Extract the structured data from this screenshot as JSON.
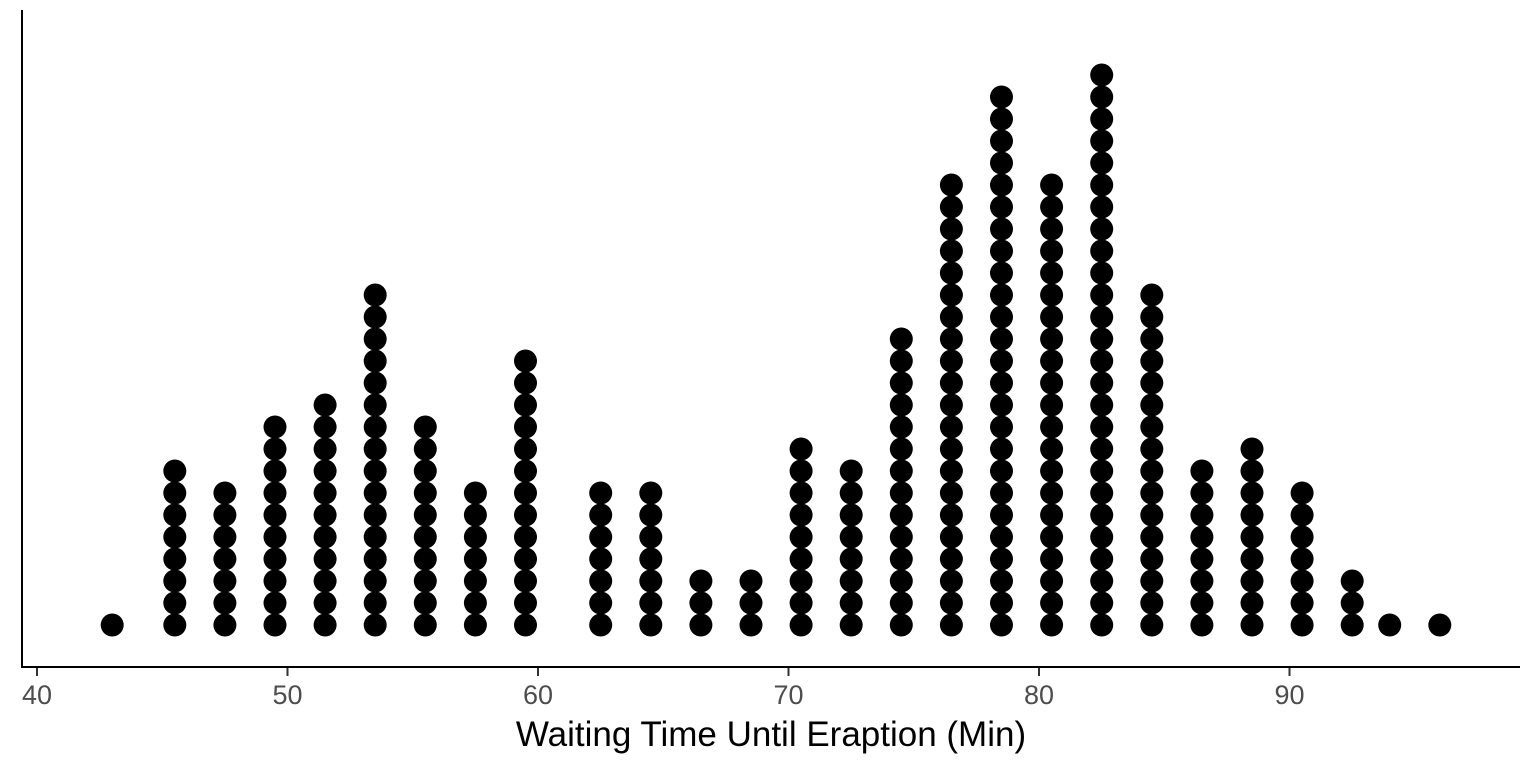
{
  "chart_data": {
    "type": "dotplot",
    "xlabel": "Waiting Time Until Eraption (Min)",
    "ylabel": "",
    "xlim": [
      39.4,
      99.2
    ],
    "x_ticks": [
      40,
      50,
      60,
      70,
      80,
      90
    ],
    "grid": false,
    "dot_color": "#000000",
    "points": [
      {
        "x": 43,
        "count": 1
      },
      {
        "x": 45.5,
        "count": 8
      },
      {
        "x": 47.5,
        "count": 7
      },
      {
        "x": 49.5,
        "count": 10
      },
      {
        "x": 51.5,
        "count": 11
      },
      {
        "x": 53.5,
        "count": 16
      },
      {
        "x": 55.5,
        "count": 10
      },
      {
        "x": 57.5,
        "count": 7
      },
      {
        "x": 59.5,
        "count": 13
      },
      {
        "x": 62.5,
        "count": 7
      },
      {
        "x": 64.5,
        "count": 7
      },
      {
        "x": 66.5,
        "count": 3
      },
      {
        "x": 68.5,
        "count": 3
      },
      {
        "x": 70.5,
        "count": 9
      },
      {
        "x": 72.5,
        "count": 8
      },
      {
        "x": 74.5,
        "count": 14
      },
      {
        "x": 76.5,
        "count": 21
      },
      {
        "x": 78.5,
        "count": 25
      },
      {
        "x": 80.5,
        "count": 21
      },
      {
        "x": 82.5,
        "count": 26
      },
      {
        "x": 84.5,
        "count": 16
      },
      {
        "x": 86.5,
        "count": 8
      },
      {
        "x": 88.5,
        "count": 9
      },
      {
        "x": 90.5,
        "count": 7
      },
      {
        "x": 92.5,
        "count": 3
      },
      {
        "x": 94,
        "count": 1
      },
      {
        "x": 96,
        "count": 1
      }
    ]
  }
}
